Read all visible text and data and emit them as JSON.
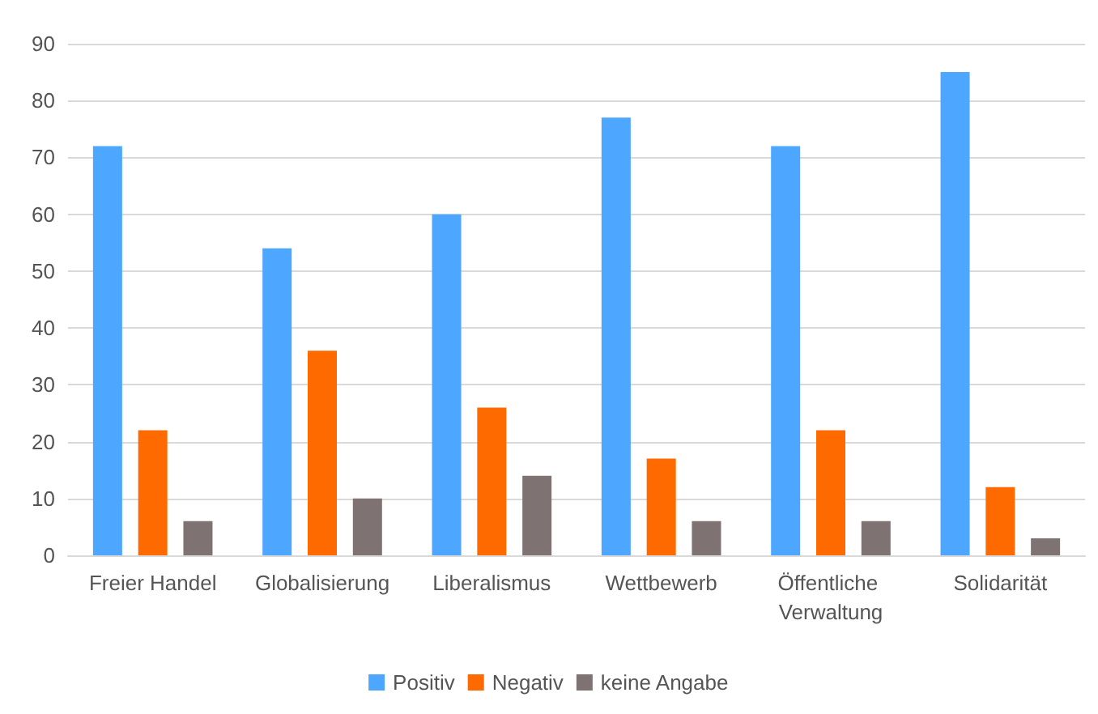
{
  "chart_data": {
    "type": "bar",
    "categories": [
      "Freier Handel",
      "Globalisierung",
      "Liberalismus",
      "Wettbewerb",
      "Öffentliche Verwaltung",
      "Solidarität"
    ],
    "series": [
      {
        "name": "Positiv",
        "color": "#4da6ff",
        "values": [
          72,
          54,
          60,
          77,
          72,
          85
        ]
      },
      {
        "name": "Negativ",
        "color": "#ff6a00",
        "values": [
          22,
          36,
          26,
          17,
          22,
          12
        ]
      },
      {
        "name": "keine Angabe",
        "color": "#7f7272",
        "values": [
          6,
          10,
          14,
          6,
          6,
          3
        ]
      }
    ],
    "ylim": [
      0,
      90
    ],
    "yticks": [
      0,
      10,
      20,
      30,
      40,
      50,
      60,
      70,
      80,
      90
    ],
    "grid": "y",
    "legend": "bottom"
  }
}
